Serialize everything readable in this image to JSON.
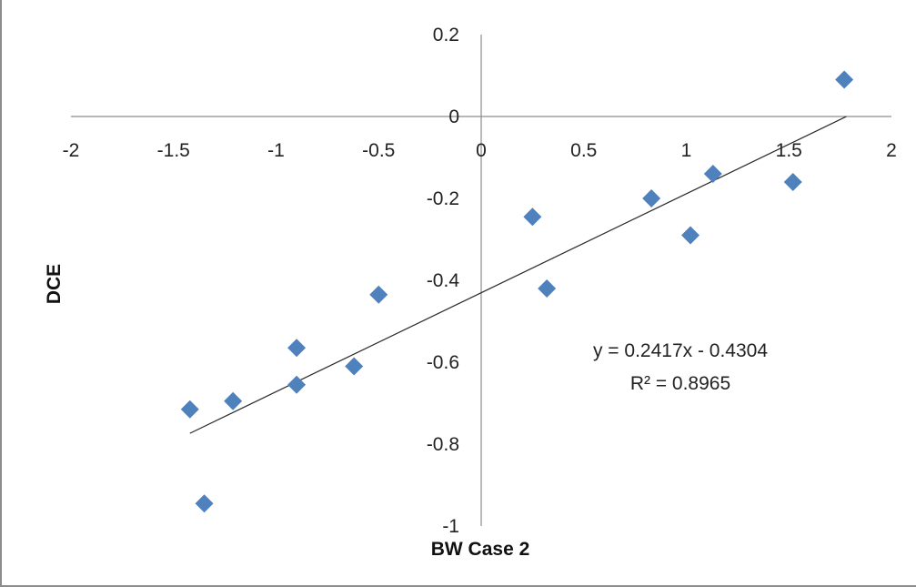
{
  "chart_data": {
    "type": "scatter",
    "title": "",
    "xlabel": "BW Case 2",
    "ylabel": "DCE",
    "xlim": [
      -2,
      2
    ],
    "ylim": [
      -1,
      0.2
    ],
    "x_ticks": [
      -2,
      -1.5,
      -1,
      -0.5,
      0,
      0.5,
      1,
      1.5,
      2
    ],
    "y_ticks": [
      0.2,
      0,
      -0.2,
      -0.4,
      -0.6,
      -0.8,
      -1
    ],
    "grid": false,
    "legend": "none",
    "marker": "diamond",
    "color": "#4f81bd",
    "series": [
      {
        "points": [
          {
            "x": -1.42,
            "y": -0.715
          },
          {
            "x": -1.35,
            "y": -0.945
          },
          {
            "x": -1.21,
            "y": -0.695
          },
          {
            "x": -0.9,
            "y": -0.565
          },
          {
            "x": -0.9,
            "y": -0.655
          },
          {
            "x": -0.62,
            "y": -0.61
          },
          {
            "x": -0.5,
            "y": -0.435
          },
          {
            "x": 0.25,
            "y": -0.245
          },
          {
            "x": 0.32,
            "y": -0.42
          },
          {
            "x": 0.83,
            "y": -0.2
          },
          {
            "x": 1.02,
            "y": -0.29
          },
          {
            "x": 1.13,
            "y": -0.14
          },
          {
            "x": 1.52,
            "y": -0.16
          },
          {
            "x": 1.77,
            "y": 0.09
          }
        ]
      }
    ],
    "trendline": {
      "slope": 0.2417,
      "intercept": -0.4304,
      "x_range": [
        -1.42,
        1.78
      ],
      "equation_label": "y = 0.2417x - 0.4304",
      "r2_label": "R² = 0.8965"
    }
  }
}
